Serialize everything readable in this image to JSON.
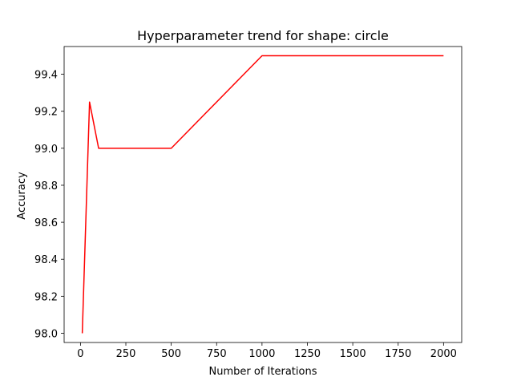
{
  "chart_data": {
    "type": "line",
    "title": "Hyperparameter trend for shape: circle",
    "xlabel": "Number of Iterations",
    "ylabel": "Accuracy",
    "xlim": [
      -90,
      2100
    ],
    "ylim": [
      97.95,
      99.55
    ],
    "xticks": [
      0,
      250,
      500,
      750,
      1000,
      1250,
      1500,
      1750,
      2000
    ],
    "yticks": [
      98.0,
      98.2,
      98.4,
      98.6,
      98.8,
      99.0,
      99.2,
      99.4
    ],
    "grid": false,
    "series": [
      {
        "color": "#ff0000",
        "x": [
          10,
          50,
          100,
          500,
          1000,
          2000
        ],
        "y": [
          98.0,
          99.25,
          99.0,
          99.0,
          99.5,
          99.5
        ]
      }
    ]
  }
}
